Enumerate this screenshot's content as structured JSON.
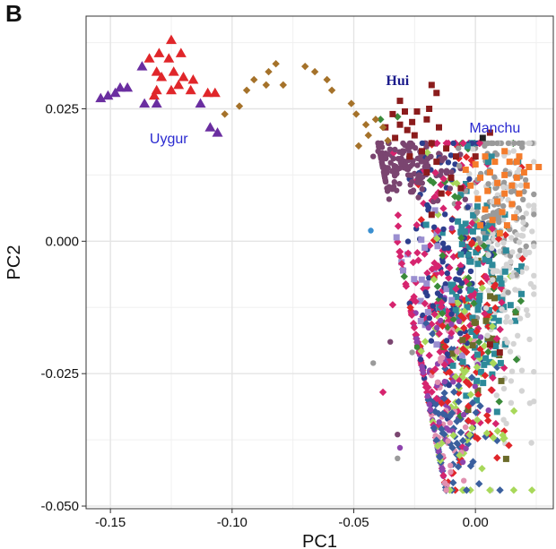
{
  "panel_label": "B",
  "colors": {
    "uygur": "#6a2ea0",
    "uygur_alt": "#e0262a",
    "admixed": "#a5722a",
    "hui": "#8b1c1c",
    "manchu": "#f47c2c",
    "han_grey": "#9a9a9a",
    "han_light": "#cfcfcf",
    "plum": "#7a4570",
    "navy": "#2d3f8e",
    "magenta": "#d6246e",
    "teal": "#2d8a9a",
    "lime": "#a8d85a",
    "green": "#3a8a3a",
    "purple": "#8e44ad",
    "lavender": "#9b8fd0",
    "olive": "#6b6b2a",
    "skyblue": "#3a8fd0",
    "dark": "#222222",
    "pink": "#e090b0",
    "annotation_blue": "#2a2ad0",
    "annotation_navy": "#1c1c8c"
  },
  "chart_data": {
    "type": "scatter",
    "title": "",
    "xlabel": "PC1",
    "ylabel": "PC2",
    "xlim": [
      -0.16,
      0.032
    ],
    "ylim": [
      -0.0505,
      0.0425
    ],
    "xticks": [
      -0.15,
      -0.1,
      -0.05,
      0.0
    ],
    "xtick_labels": [
      "-0.15",
      "-0.10",
      "-0.05",
      "0.00"
    ],
    "yticks": [
      0.025,
      0.0,
      -0.025,
      -0.05
    ],
    "ytick_labels": [
      "0.025",
      "0.000",
      "-0.025",
      "-0.050"
    ],
    "grid": true,
    "annotations": [
      {
        "text": "Uygur",
        "x": -0.126,
        "y": 0.0185,
        "color": "#2a2ad0",
        "style": "sans"
      },
      {
        "text": "Hui",
        "x": -0.032,
        "y": 0.0295,
        "color": "#1c1c8c",
        "style": "serif"
      },
      {
        "text": "Manchu",
        "x": 0.008,
        "y": 0.0205,
        "color": "#2a2ad0",
        "style": "sans"
      }
    ],
    "uygur_points": [
      {
        "x": -0.125,
        "y": 0.038
      },
      {
        "x": -0.13,
        "y": 0.0355
      },
      {
        "x": -0.121,
        "y": 0.0355
      },
      {
        "x": -0.134,
        "y": 0.0345
      },
      {
        "x": -0.126,
        "y": 0.0345
      },
      {
        "x": -0.137,
        "y": 0.033
      },
      {
        "x": -0.131,
        "y": 0.032
      },
      {
        "x": -0.124,
        "y": 0.032
      },
      {
        "x": -0.129,
        "y": 0.031
      },
      {
        "x": -0.12,
        "y": 0.031
      },
      {
        "x": -0.116,
        "y": 0.0305
      },
      {
        "x": -0.122,
        "y": 0.0295
      },
      {
        "x": -0.131,
        "y": 0.0285
      },
      {
        "x": -0.125,
        "y": 0.0285
      },
      {
        "x": -0.117,
        "y": 0.0285
      },
      {
        "x": -0.143,
        "y": 0.029
      },
      {
        "x": -0.11,
        "y": 0.028
      },
      {
        "x": -0.132,
        "y": 0.0275
      },
      {
        "x": -0.107,
        "y": 0.028
      },
      {
        "x": -0.148,
        "y": 0.028
      },
      {
        "x": -0.151,
        "y": 0.0275
      },
      {
        "x": -0.154,
        "y": 0.027
      },
      {
        "x": -0.146,
        "y": 0.029
      },
      {
        "x": -0.136,
        "y": 0.026
      },
      {
        "x": -0.131,
        "y": 0.026
      },
      {
        "x": -0.113,
        "y": 0.026
      },
      {
        "x": -0.109,
        "y": 0.0215
      },
      {
        "x": -0.106,
        "y": 0.0205
      }
    ],
    "uygur_red_indices": [
      0,
      1,
      2,
      3,
      4,
      6,
      7,
      8,
      9,
      10,
      11,
      12,
      13,
      14,
      16,
      17,
      18
    ],
    "admixed_points": [
      {
        "x": -0.082,
        "y": 0.0335
      },
      {
        "x": -0.085,
        "y": 0.032
      },
      {
        "x": -0.07,
        "y": 0.033
      },
      {
        "x": -0.066,
        "y": 0.032
      },
      {
        "x": -0.061,
        "y": 0.0305
      },
      {
        "x": -0.091,
        "y": 0.0305
      },
      {
        "x": -0.079,
        "y": 0.0295
      },
      {
        "x": -0.086,
        "y": 0.0295
      },
      {
        "x": -0.094,
        "y": 0.0285
      },
      {
        "x": -0.059,
        "y": 0.0285
      },
      {
        "x": -0.097,
        "y": 0.0255
      },
      {
        "x": -0.051,
        "y": 0.026
      },
      {
        "x": -0.049,
        "y": 0.024
      },
      {
        "x": -0.103,
        "y": 0.024
      },
      {
        "x": -0.045,
        "y": 0.022
      },
      {
        "x": -0.041,
        "y": 0.023
      },
      {
        "x": -0.044,
        "y": 0.02
      },
      {
        "x": -0.048,
        "y": 0.018
      },
      {
        "x": -0.038,
        "y": 0.0215
      },
      {
        "x": -0.036,
        "y": 0.019
      }
    ],
    "hui_points": [
      {
        "x": -0.018,
        "y": 0.0295
      },
      {
        "x": -0.016,
        "y": 0.028
      },
      {
        "x": -0.031,
        "y": 0.0265
      },
      {
        "x": -0.024,
        "y": 0.0245
      },
      {
        "x": -0.019,
        "y": 0.025
      },
      {
        "x": -0.029,
        "y": 0.0245
      },
      {
        "x": -0.034,
        "y": 0.024
      },
      {
        "x": -0.02,
        "y": 0.023
      },
      {
        "x": -0.026,
        "y": 0.0225
      },
      {
        "x": -0.031,
        "y": 0.022
      },
      {
        "x": -0.037,
        "y": 0.0215
      },
      {
        "x": -0.028,
        "y": 0.021
      },
      {
        "x": -0.015,
        "y": 0.0215
      },
      {
        "x": -0.025,
        "y": 0.02
      },
      {
        "x": -0.033,
        "y": 0.0195
      },
      {
        "x": -0.018,
        "y": 0.0185
      },
      {
        "x": -0.022,
        "y": 0.017
      },
      {
        "x": -0.012,
        "y": 0.0175
      },
      {
        "x": -0.027,
        "y": 0.016
      },
      {
        "x": -0.016,
        "y": 0.015
      },
      {
        "x": -0.008,
        "y": 0.016
      },
      {
        "x": -0.02,
        "y": 0.013
      },
      {
        "x": -0.01,
        "y": 0.012
      },
      {
        "x": -0.014,
        "y": 0.009
      },
      {
        "x": 0.006,
        "y": 0.0205
      },
      {
        "x": -0.006,
        "y": 0.01
      },
      {
        "x": -0.018,
        "y": 0.005
      },
      {
        "x": 0.0,
        "y": 0.016
      },
      {
        "x": 0.01,
        "y": -0.021
      },
      {
        "x": 0.006,
        "y": -0.0195
      }
    ],
    "manchu_points": [
      {
        "x": 0.012,
        "y": 0.017
      },
      {
        "x": 0.018,
        "y": 0.016
      },
      {
        "x": 0.022,
        "y": 0.014
      },
      {
        "x": 0.004,
        "y": 0.016
      },
      {
        "x": 0.008,
        "y": 0.015
      },
      {
        "x": 0.014,
        "y": 0.015
      },
      {
        "x": 0.0,
        "y": 0.0145
      },
      {
        "x": 0.02,
        "y": 0.013
      },
      {
        "x": 0.026,
        "y": 0.014
      },
      {
        "x": -0.004,
        "y": 0.0135
      },
      {
        "x": 0.006,
        "y": 0.013
      },
      {
        "x": 0.012,
        "y": 0.0125
      },
      {
        "x": 0.017,
        "y": 0.012
      },
      {
        "x": 0.002,
        "y": 0.012
      },
      {
        "x": 0.009,
        "y": 0.011
      },
      {
        "x": 0.015,
        "y": 0.0105
      },
      {
        "x": -0.002,
        "y": 0.0105
      },
      {
        "x": 0.005,
        "y": 0.0095
      },
      {
        "x": 0.012,
        "y": 0.009
      },
      {
        "x": 0.018,
        "y": 0.009
      },
      {
        "x": 0.001,
        "y": 0.008
      },
      {
        "x": 0.009,
        "y": 0.0075
      },
      {
        "x": 0.015,
        "y": 0.007
      },
      {
        "x": 0.004,
        "y": 0.006
      },
      {
        "x": 0.011,
        "y": 0.0055
      },
      {
        "x": 0.016,
        "y": 0.0045
      },
      {
        "x": 0.007,
        "y": 0.004
      },
      {
        "x": 0.013,
        "y": 0.003
      },
      {
        "x": 0.002,
        "y": 0.003
      },
      {
        "x": 0.01,
        "y": 0.0015
      },
      {
        "x": 0.017,
        "y": 0.015
      },
      {
        "x": 0.021,
        "y": 0.0105
      }
    ],
    "main_cluster": {
      "seed": 7,
      "groups": [
        {
          "name": "",
          "color": "#7a4570",
          "shape": "circle",
          "n": 170,
          "x": -0.03,
          "xsd": 0.01,
          "y": 0.014,
          "ysd": 0.003
        },
        {
          "name": "",
          "color": "#9a9a9a",
          "shape": "circle",
          "n": 120,
          "x": 0.01,
          "xsd": 0.008,
          "y": 0.009,
          "ysd": 0.009
        },
        {
          "name": "",
          "color": "#d4d4d4",
          "shape": "circle",
          "n": 160,
          "x": 0.014,
          "xsd": 0.008,
          "y": -0.004,
          "ysd": 0.014
        },
        {
          "name": "",
          "color": "#2d3f8e",
          "shape": "circle",
          "n": 110,
          "x": -0.01,
          "xsd": 0.008,
          "y": -0.006,
          "ysd": 0.014
        },
        {
          "name": "",
          "color": "#d6246e",
          "shape": "diamond",
          "n": 200,
          "x": -0.014,
          "xsd": 0.011,
          "y": -0.012,
          "ysd": 0.016
        },
        {
          "name": "",
          "color": "#2d8a9a",
          "shape": "square",
          "n": 110,
          "x": 0.002,
          "xsd": 0.008,
          "y": -0.007,
          "ysd": 0.011
        },
        {
          "name": "",
          "color": "#a8d85a",
          "shape": "diamond",
          "n": 90,
          "x": -0.004,
          "xsd": 0.01,
          "y": -0.022,
          "ysd": 0.013
        },
        {
          "name": "",
          "color": "#3a8a3a",
          "shape": "diamond",
          "n": 40,
          "x": -0.004,
          "xsd": 0.01,
          "y": -0.004,
          "ysd": 0.016
        },
        {
          "name": "",
          "color": "#8e44ad",
          "shape": "circle",
          "n": 80,
          "x": -0.018,
          "xsd": 0.01,
          "y": -0.028,
          "ysd": 0.011
        },
        {
          "name": "",
          "color": "#e0262a",
          "shape": "diamond",
          "n": 90,
          "x": -0.006,
          "xsd": 0.01,
          "y": -0.018,
          "ysd": 0.015
        },
        {
          "name": "",
          "color": "#3a5f9e",
          "shape": "diamond",
          "n": 80,
          "x": -0.012,
          "xsd": 0.008,
          "y": -0.036,
          "ysd": 0.008
        },
        {
          "name": "",
          "color": "#9b8fd0",
          "shape": "square",
          "n": 25,
          "x": -0.018,
          "xsd": 0.008,
          "y": -0.008,
          "ysd": 0.006
        },
        {
          "name": "",
          "color": "#6b6b2a",
          "shape": "square",
          "n": 20,
          "x": 0.004,
          "xsd": 0.008,
          "y": -0.02,
          "ysd": 0.01
        },
        {
          "name": "",
          "color": "#e090b0",
          "shape": "circle",
          "n": 50,
          "x": -0.014,
          "xsd": 0.008,
          "y": -0.032,
          "ysd": 0.01
        }
      ]
    },
    "outliers": [
      {
        "x": -0.043,
        "y": 0.002,
        "color": "#3a8fd0",
        "shape": "circle"
      },
      {
        "x": -0.042,
        "y": -0.023,
        "color": "#9a9a9a",
        "shape": "circle"
      },
      {
        "x": -0.038,
        "y": -0.0285,
        "color": "#d6246e",
        "shape": "diamond"
      },
      {
        "x": -0.035,
        "y": -0.019,
        "color": "#7a4570",
        "shape": "circle"
      },
      {
        "x": -0.032,
        "y": -0.0365,
        "color": "#7a4570",
        "shape": "circle"
      },
      {
        "x": -0.031,
        "y": -0.039,
        "color": "#8e44ad",
        "shape": "circle"
      },
      {
        "x": -0.032,
        "y": -0.041,
        "color": "#9a9a9a",
        "shape": "circle"
      },
      {
        "x": -0.034,
        "y": -0.012,
        "color": "#d6246e",
        "shape": "diamond"
      },
      {
        "x": -0.04,
        "y": 0.017,
        "color": "#7a4570",
        "shape": "circle"
      },
      {
        "x": -0.042,
        "y": 0.016,
        "color": "#7a4570",
        "shape": "circle"
      },
      {
        "x": -0.039,
        "y": 0.023,
        "color": "#3a8a3a",
        "shape": "diamond"
      },
      {
        "x": -0.032,
        "y": 0.0235,
        "color": "#3a8a3a",
        "shape": "diamond"
      },
      {
        "x": -0.024,
        "y": -0.02,
        "color": "#3a8a3a",
        "shape": "circle"
      },
      {
        "x": -0.026,
        "y": -0.021,
        "color": "#9a9a9a",
        "shape": "circle"
      },
      {
        "x": 0.003,
        "y": 0.0195,
        "color": "#222222",
        "shape": "square"
      },
      {
        "x": 0.021,
        "y": -0.013,
        "color": "#d4d4d4",
        "shape": "circle"
      },
      {
        "x": 0.024,
        "y": -0.01,
        "color": "#d4d4d4",
        "shape": "circle"
      }
    ]
  }
}
